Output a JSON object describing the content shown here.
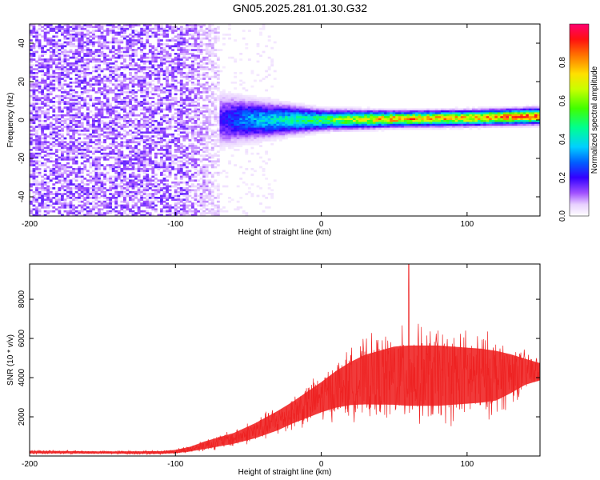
{
  "title": "GN05.2025.281.01.30.G32",
  "chart_data": [
    {
      "type": "heatmap",
      "title": "GN05.2025.281.01.30.G32",
      "xlabel": "Height of straight line (km)",
      "ylabel": "Frequency (Hz)",
      "xlim": [
        -200,
        150
      ],
      "ylim": [
        -50,
        50
      ],
      "x_ticks": [
        "-200",
        "-100",
        "0",
        "100"
      ],
      "y_ticks": [
        "-40",
        "-20",
        "0",
        "20",
        "40"
      ],
      "colorbar": {
        "label": "Normalized spectral amplitude",
        "range": [
          0,
          1
        ],
        "ticks": [
          "0.0",
          "0.2",
          "0.4",
          "0.6",
          "0.8"
        ]
      },
      "description_points": [
        {
          "x": -200,
          "freq_center": 0,
          "peak_amplitude": 0.08,
          "spread_hz": 50
        },
        {
          "x": -75,
          "freq_center": 0,
          "peak_amplitude": 0.15,
          "spread_hz": 12
        },
        {
          "x": -50,
          "freq_center": 0,
          "peak_amplitude": 0.35,
          "spread_hz": 8
        },
        {
          "x": 0,
          "freq_center": 0,
          "peak_amplitude": 0.55,
          "spread_hz": 4
        },
        {
          "x": 50,
          "freq_center": 0.5,
          "peak_amplitude": 0.85,
          "spread_hz": 3
        },
        {
          "x": 100,
          "freq_center": 1,
          "peak_amplitude": 0.8,
          "spread_hz": 3
        },
        {
          "x": 150,
          "freq_center": 2,
          "peak_amplitude": 0.95,
          "spread_hz": 3
        }
      ]
    },
    {
      "type": "line",
      "xlabel": "Height of straight line (km)",
      "ylabel": "SNR (10 * v/v)",
      "xlim": [
        -200,
        150
      ],
      "ylim": [
        0,
        9800
      ],
      "x_ticks": [
        "-200",
        "-100",
        "0",
        "100"
      ],
      "y_ticks": [
        "2000",
        "4000",
        "6000",
        "8000"
      ],
      "color": "#ee3333",
      "envelope": {
        "x": [
          -200,
          -150,
          -110,
          -100,
          -90,
          -85,
          -80,
          -60,
          -45,
          -30,
          -20,
          -10,
          0,
          10,
          20,
          30,
          40,
          50,
          60,
          70,
          80,
          90,
          100,
          110,
          120,
          130,
          140,
          150
        ],
        "mean": [
          200,
          180,
          180,
          230,
          350,
          450,
          550,
          900,
          1300,
          1800,
          2200,
          2600,
          3000,
          3400,
          3700,
          3900,
          4000,
          4100,
          4100,
          4100,
          4100,
          4100,
          4100,
          4100,
          4100,
          4200,
          4300,
          4300
        ],
        "amplitude": [
          120,
          100,
          120,
          150,
          220,
          280,
          350,
          500,
          700,
          900,
          1000,
          1200,
          1400,
          1700,
          2000,
          2300,
          2500,
          2700,
          2800,
          2800,
          2800,
          2700,
          2600,
          2500,
          2300,
          1800,
          1200,
          800
        ]
      },
      "peak": {
        "x": 60,
        "y": 9800
      }
    }
  ]
}
